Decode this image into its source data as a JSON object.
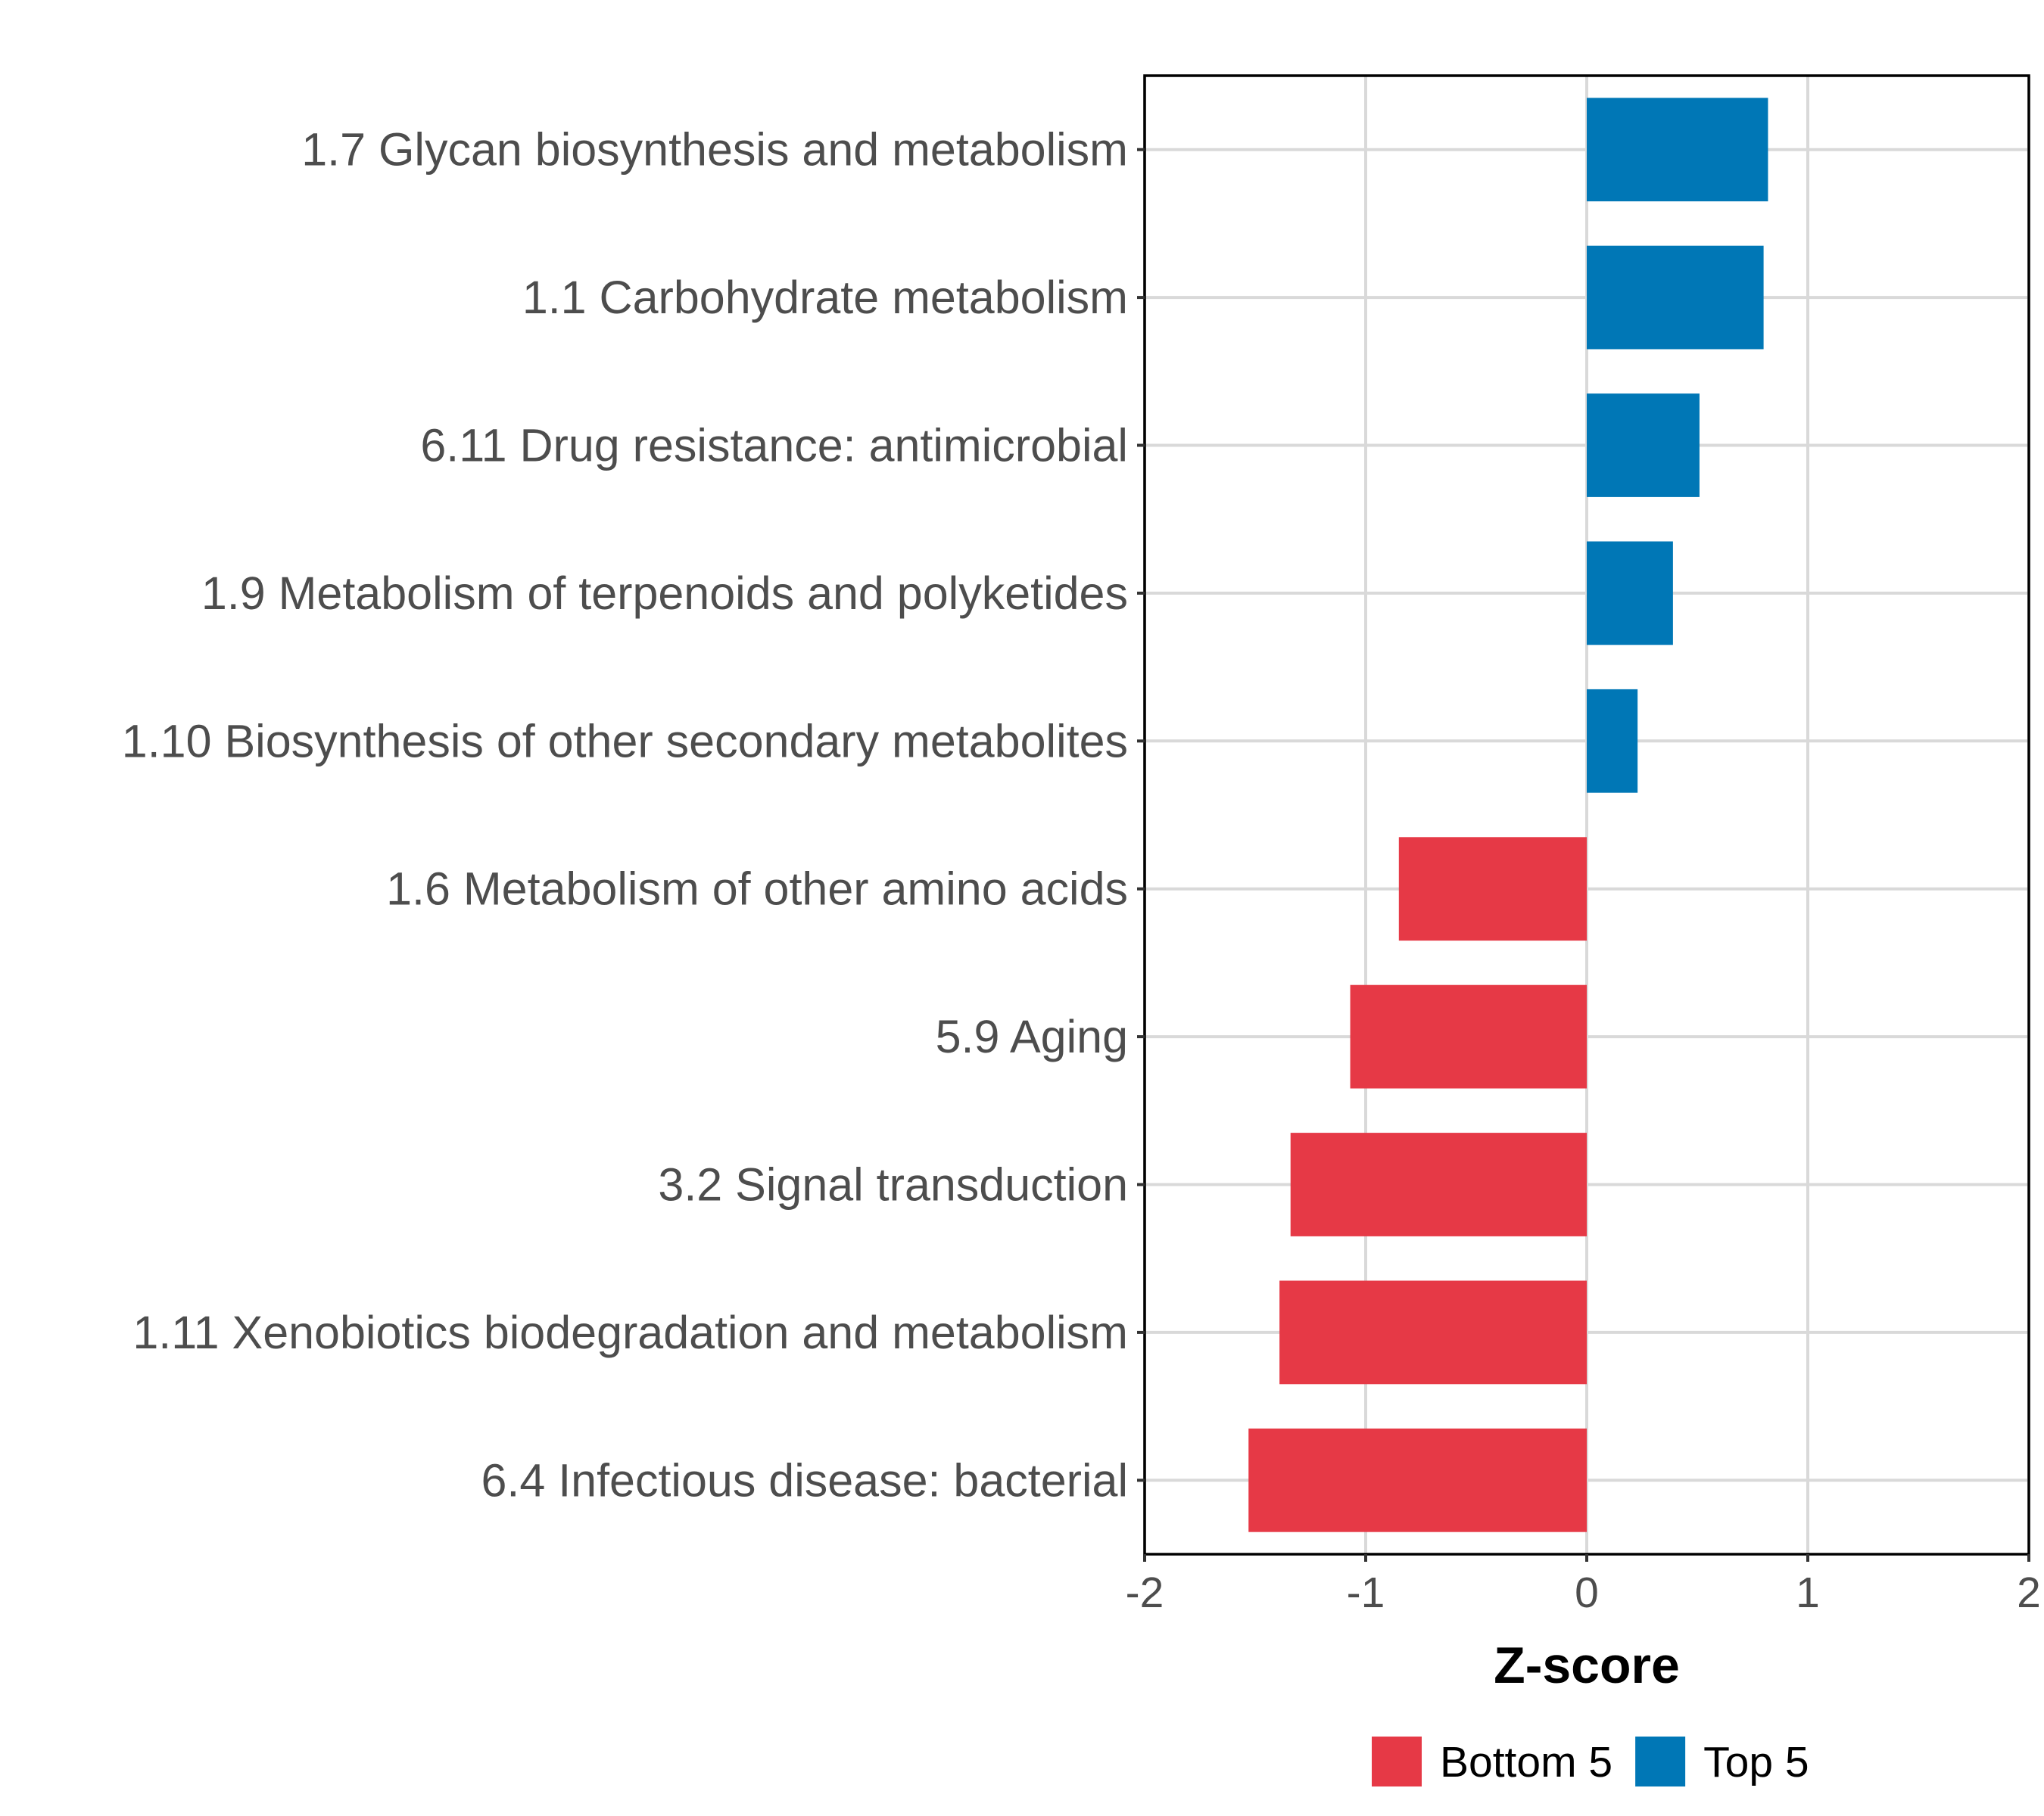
{
  "chart_data": {
    "type": "bar",
    "orientation": "horizontal",
    "title": "",
    "xlabel": "Z-score",
    "ylabel": "",
    "xlim": [
      -2,
      2
    ],
    "xticks": [
      -2,
      -1,
      0,
      1,
      2
    ],
    "xtick_labels": [
      "-2",
      "-1",
      "0",
      "1",
      "2"
    ],
    "grid": true,
    "legend_position": "bottom",
    "categories": [
      "1.7 Glycan biosynthesis and metabolism",
      "1.1 Carbohydrate metabolism",
      "6.11 Drug resistance: antimicrobial",
      "1.9 Metabolism of terpenoids and polyketides",
      "1.10 Biosynthesis of other secondary metabolites",
      "1.6 Metabolism of other amino acids",
      "5.9 Aging",
      "3.2 Signal transduction",
      "1.11 Xenobiotics biodegradation and metabolism",
      "6.4 Infectious disease: bacterial"
    ],
    "values": [
      0.82,
      0.8,
      0.51,
      0.39,
      0.23,
      -0.85,
      -1.07,
      -1.34,
      -1.39,
      -1.53
    ],
    "groups": [
      "Top 5",
      "Top 5",
      "Top 5",
      "Top 5",
      "Top 5",
      "Bottom 5",
      "Bottom 5",
      "Bottom 5",
      "Bottom 5",
      "Bottom 5"
    ],
    "legend": [
      {
        "name": "Bottom 5",
        "color": "#e63946"
      },
      {
        "name": "Top 5",
        "color": "#0077b6"
      }
    ]
  }
}
